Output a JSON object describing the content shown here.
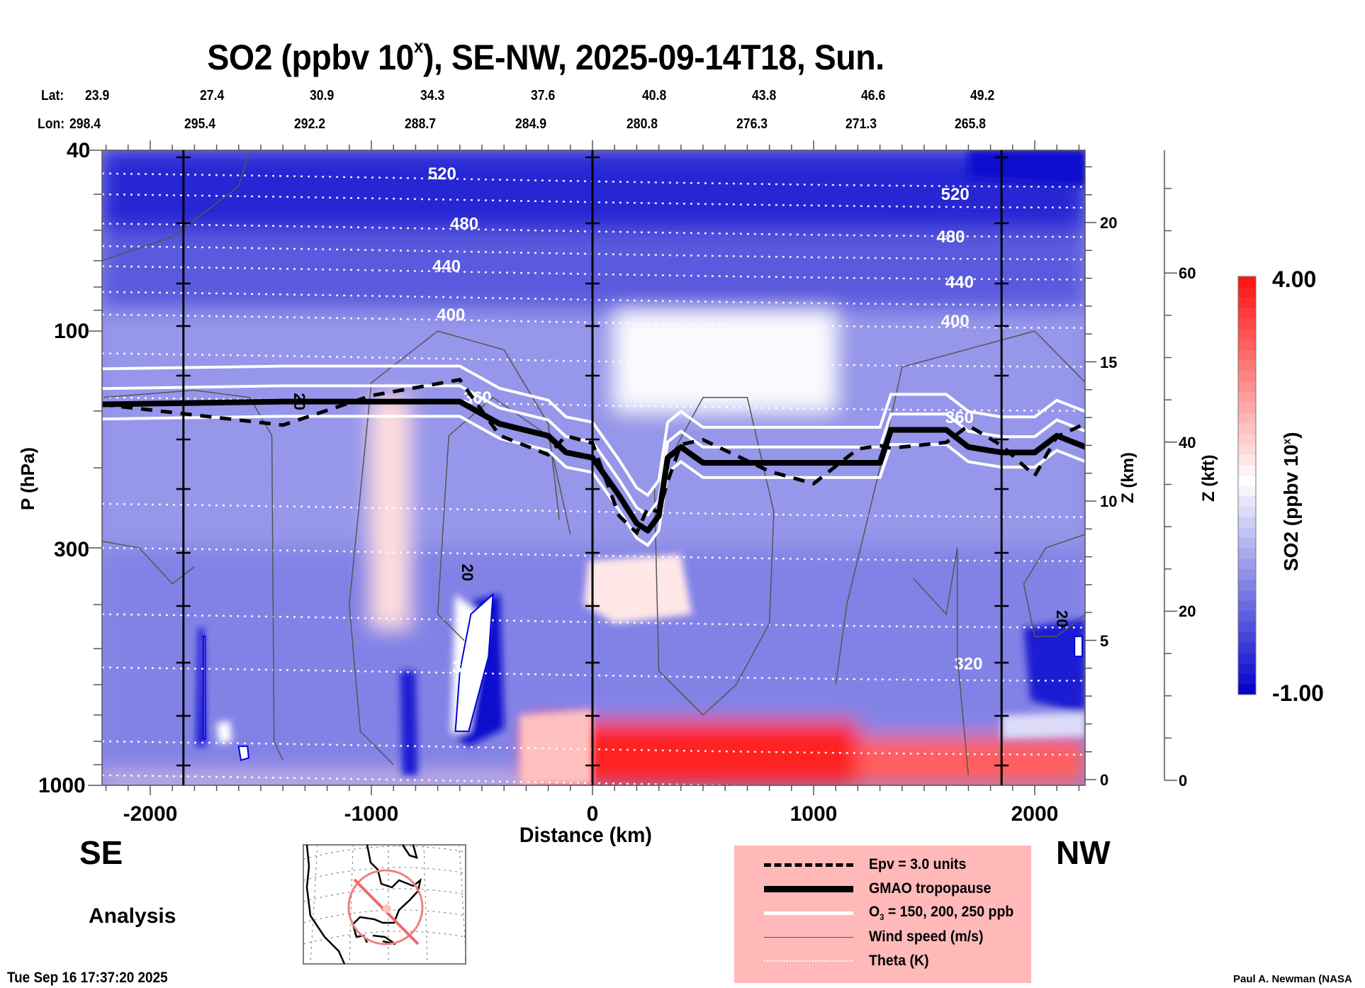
{
  "chart_data": {
    "type": "heatmap",
    "title_main": "SO2 (ppbv 10",
    "title_sup": "x",
    "title_tail": "), SE-NW, 2025-09-14T18, Sun.",
    "xlabel": "Distance (km)",
    "ylabel": "P (hPa)",
    "y2label": "Z (km)",
    "y3label": "Z (kft)",
    "xlim": [
      -2220,
      2230
    ],
    "ylim_hpa": [
      1000,
      40
    ],
    "yscale": "log",
    "x_ticks": [
      -2000,
      -1000,
      0,
      1000,
      2000
    ],
    "x_tick_labels": [
      "-2000",
      "-1000",
      "0",
      "1000",
      "2000"
    ],
    "y_ticks": [
      40,
      100,
      300,
      1000
    ],
    "y_tick_labels": [
      "40",
      "100",
      "300",
      "1000"
    ],
    "zkm_ticks": [
      0,
      5,
      10,
      15,
      20
    ],
    "zkm_tick_labels": [
      "0",
      "5",
      "10",
      "15",
      "20"
    ],
    "zkft_ticks": [
      0,
      20,
      40,
      60
    ],
    "zkft_tick_labels": [
      "0",
      "20",
      "40",
      "60"
    ],
    "lat_label": "Lat:",
    "lon_label": "Lon:",
    "lat_values": [
      "23.9",
      "27.4",
      "30.9",
      "34.3",
      "37.6",
      "40.8",
      "43.8",
      "46.6",
      "49.2"
    ],
    "lon_values": [
      "298.4",
      "295.4",
      "292.2",
      "288.7",
      "284.9",
      "280.8",
      "276.3",
      "271.3",
      "265.8"
    ],
    "colorbar": {
      "label_main": "SO2 (ppbv 10",
      "label_sup": "x",
      "label_tail": ")",
      "min": -1.0,
      "max": 4.0,
      "min_label": "-1.00",
      "max_label": "4.00",
      "levels": 40,
      "low_color": "#0000cc",
      "mid_color": "#ffffff",
      "high_color": "#ff1010",
      "white_at": 1.55
    },
    "field_regions": [
      {
        "name": "stratosphere-top",
        "value": -0.6,
        "x": [
          -2220,
          2230
        ],
        "p": [
          40,
          60
        ]
      },
      {
        "name": "stratosphere-mid",
        "value": -0.1,
        "x": [
          -2220,
          2230
        ],
        "p": [
          60,
          90
        ]
      },
      {
        "name": "upper-trop",
        "value": 0.5,
        "x": [
          -2220,
          2230
        ],
        "p": [
          90,
          300
        ]
      },
      {
        "name": "mid-trop",
        "value": 0.3,
        "x": [
          -2220,
          2230
        ],
        "p": [
          300,
          900
        ]
      },
      {
        "name": "plume-nw-white",
        "value": 1.5,
        "x": [
          100,
          1100
        ],
        "p": [
          90,
          150
        ]
      },
      {
        "name": "plume-column-red",
        "value": 1.9,
        "x": [
          -1000,
          -830
        ],
        "p": [
          140,
          450
        ]
      },
      {
        "name": "boundary-layer-red",
        "value": 3.8,
        "x": [
          -300,
          1200
        ],
        "p": [
          720,
          1000
        ]
      },
      {
        "name": "boundary-layer-red-nw",
        "value": 3.2,
        "x": [
          1200,
          2230
        ],
        "p": [
          780,
          1000
        ]
      },
      {
        "name": "surface-pink-se",
        "value": 2.0,
        "x": [
          -2220,
          -300
        ],
        "p": [
          960,
          1000
        ]
      }
    ],
    "theta_contours": [
      {
        "label": "520",
        "p_left": 45,
        "p_right": 50,
        "label_x": [
          -680,
          1640
        ]
      },
      {
        "label": "480",
        "p_left": 58,
        "p_right": 62,
        "label_x": [
          -580,
          1620
        ]
      },
      {
        "label": "440",
        "p_left": 72,
        "p_right": 78,
        "label_x": [
          -660,
          1660
        ]
      },
      {
        "label": "400",
        "p_left": 92,
        "p_right": 95,
        "label_x": [
          -640,
          1640
        ]
      },
      {
        "label": "360",
        "p_left": 140,
        "p_right": 155,
        "label_x": [
          -520,
          1660
        ]
      },
      {
        "label": "320",
        "p_left": 550,
        "p_right": 540,
        "label_x": [
          -570,
          1700
        ]
      }
    ],
    "tropopause": {
      "x": [
        -2220,
        -1400,
        -1000,
        -600,
        -420,
        -200,
        -120,
        0,
        120,
        200,
        250,
        300,
        340,
        400,
        500,
        800,
        1000,
        1200,
        1300,
        1350,
        1600,
        1700,
        1850,
        2000,
        2100,
        2230
      ],
      "p": [
        145,
        143,
        143,
        143,
        160,
        170,
        185,
        190,
        230,
        265,
        275,
        255,
        190,
        180,
        195,
        195,
        195,
        195,
        195,
        165,
        165,
        180,
        185,
        185,
        170,
        180
      ]
    },
    "wind_labels": [
      {
        "text": "20",
        "x": -590,
        "p": 340
      },
      {
        "text": "20",
        "x": 2100,
        "p": 430
      },
      {
        "text": "20",
        "x": -1350,
        "p": 143
      }
    ],
    "legend": [
      {
        "label": "Epv = 3.0 units",
        "style": "dashed-thick"
      },
      {
        "label": "GMAO tropopause",
        "style": "solid-heavy"
      },
      {
        "label_main": "O",
        "label_sub": "3",
        "label_tail": " = 150, 200, 250 ppb",
        "style": "solid-white"
      },
      {
        "label": "Wind speed (m/s)",
        "style": "solid-thin-gray"
      },
      {
        "label": "Theta (K)",
        "style": "dotted-white"
      }
    ]
  },
  "annotations": {
    "se": "SE",
    "nw": "NW",
    "analysis": "Analysis",
    "timestamp": "Tue Sep 16 17:37:20 2025",
    "credit": "Paul A. Newman (NASA"
  },
  "map_inset": {
    "track_color": "#f06a6a",
    "circle_color": "#f08080",
    "region": "North America"
  }
}
